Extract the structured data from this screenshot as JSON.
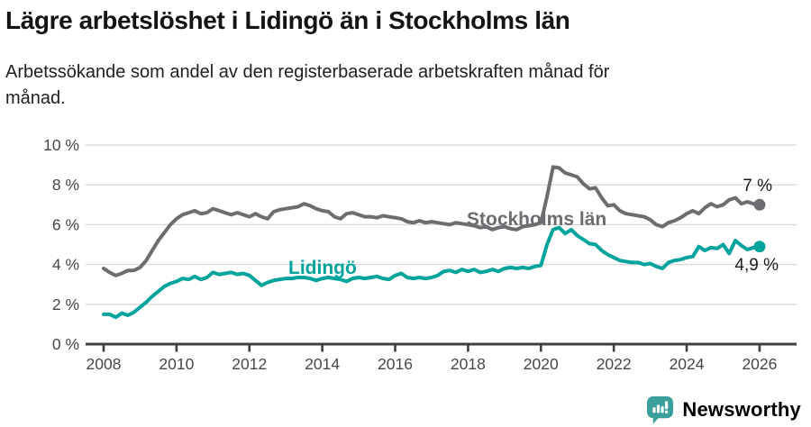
{
  "title": "Lägre arbetslöshet i Lidingö än i Stockholms län",
  "subtitle": "Arbetssökande som andel av den registerbaserade arbetskraften månad för månad.",
  "footer": {
    "brand": "Newsworthy",
    "logo_icon": "bar-chart-speech-bubble-icon"
  },
  "colors": {
    "stockholm_line": "#6d6d71",
    "lidingo_line": "#00a49c",
    "gridline": "#d8d8d8",
    "axis": "#3f3f3f",
    "tick_text": "#474747",
    "end_label_text": "#1c1c1c",
    "brand_teal": "#3ba09c",
    "title_text": "#141414"
  },
  "chart_data": {
    "type": "line",
    "unit": "%",
    "title": "Lägre arbetslöshet i Lidingö än i Stockholms län",
    "xlabel": "",
    "ylabel": "",
    "ylim": [
      0,
      10
    ],
    "x_axis_range_years": [
      2007.5,
      2027
    ],
    "grid": "horizontal",
    "legend_position": "inline-labels",
    "y_tick_values": [
      0,
      2,
      4,
      6,
      8,
      10
    ],
    "y_tick_labels": [
      "0 %",
      "2 %",
      "4 %",
      "6 %",
      "8 %",
      "10 %"
    ],
    "x_tick_values": [
      2008,
      2010,
      2012,
      2014,
      2016,
      2018,
      2020,
      2022,
      2024,
      2026
    ],
    "x_tick_labels": [
      "2008",
      "2010",
      "2012",
      "2014",
      "2016",
      "2018",
      "2020",
      "2022",
      "2024",
      "2026"
    ],
    "x_start": 2008.0,
    "x_step_years": 0.1666667,
    "series": [
      {
        "name": "Stockholms län",
        "color": "#6d6d71",
        "end_value": 7.0,
        "end_label": "7 %",
        "values": [
          3.8,
          3.6,
          3.45,
          3.55,
          3.7,
          3.7,
          3.85,
          4.2,
          4.7,
          5.2,
          5.6,
          6.0,
          6.3,
          6.5,
          6.6,
          6.7,
          6.55,
          6.6,
          6.8,
          6.7,
          6.6,
          6.5,
          6.6,
          6.5,
          6.4,
          6.55,
          6.4,
          6.3,
          6.65,
          6.75,
          6.8,
          6.85,
          6.9,
          7.05,
          6.95,
          6.8,
          6.7,
          6.65,
          6.4,
          6.3,
          6.55,
          6.6,
          6.5,
          6.4,
          6.4,
          6.35,
          6.45,
          6.4,
          6.35,
          6.3,
          6.15,
          6.1,
          6.2,
          6.1,
          6.15,
          6.1,
          6.05,
          6.0,
          6.1,
          6.05,
          6.0,
          5.95,
          5.85,
          5.9,
          5.75,
          5.85,
          5.9,
          5.8,
          5.75,
          5.9,
          5.95,
          6.0,
          6.1,
          7.4,
          8.9,
          8.85,
          8.6,
          8.5,
          8.4,
          8.05,
          7.8,
          7.85,
          7.35,
          6.95,
          7.0,
          6.7,
          6.55,
          6.5,
          6.45,
          6.4,
          6.25,
          6.0,
          5.9,
          6.1,
          6.2,
          6.35,
          6.55,
          6.7,
          6.55,
          6.85,
          7.05,
          6.9,
          7.0,
          7.25,
          7.35,
          7.05,
          7.15,
          7.05,
          7.0
        ]
      },
      {
        "name": "Lidingö",
        "color": "#00a49c",
        "end_value": 4.9,
        "end_label": "4,9 %",
        "values": [
          1.5,
          1.5,
          1.35,
          1.55,
          1.45,
          1.6,
          1.85,
          2.1,
          2.4,
          2.65,
          2.9,
          3.05,
          3.15,
          3.3,
          3.25,
          3.4,
          3.25,
          3.35,
          3.6,
          3.5,
          3.55,
          3.6,
          3.5,
          3.55,
          3.45,
          3.2,
          2.95,
          3.1,
          3.2,
          3.25,
          3.3,
          3.3,
          3.35,
          3.35,
          3.3,
          3.2,
          3.3,
          3.35,
          3.3,
          3.25,
          3.15,
          3.3,
          3.35,
          3.3,
          3.35,
          3.4,
          3.3,
          3.25,
          3.45,
          3.55,
          3.35,
          3.3,
          3.35,
          3.3,
          3.35,
          3.45,
          3.65,
          3.7,
          3.6,
          3.75,
          3.65,
          3.75,
          3.6,
          3.65,
          3.75,
          3.65,
          3.8,
          3.85,
          3.8,
          3.85,
          3.8,
          3.9,
          3.95,
          5.0,
          5.75,
          5.85,
          5.55,
          5.75,
          5.45,
          5.25,
          5.05,
          5.0,
          4.7,
          4.5,
          4.35,
          4.2,
          4.15,
          4.1,
          4.1,
          4.0,
          4.05,
          3.9,
          3.8,
          4.1,
          4.2,
          4.25,
          4.35,
          4.4,
          4.9,
          4.7,
          4.85,
          4.8,
          5.0,
          4.55,
          5.2,
          4.95,
          4.75,
          4.85,
          4.9
        ]
      }
    ]
  }
}
